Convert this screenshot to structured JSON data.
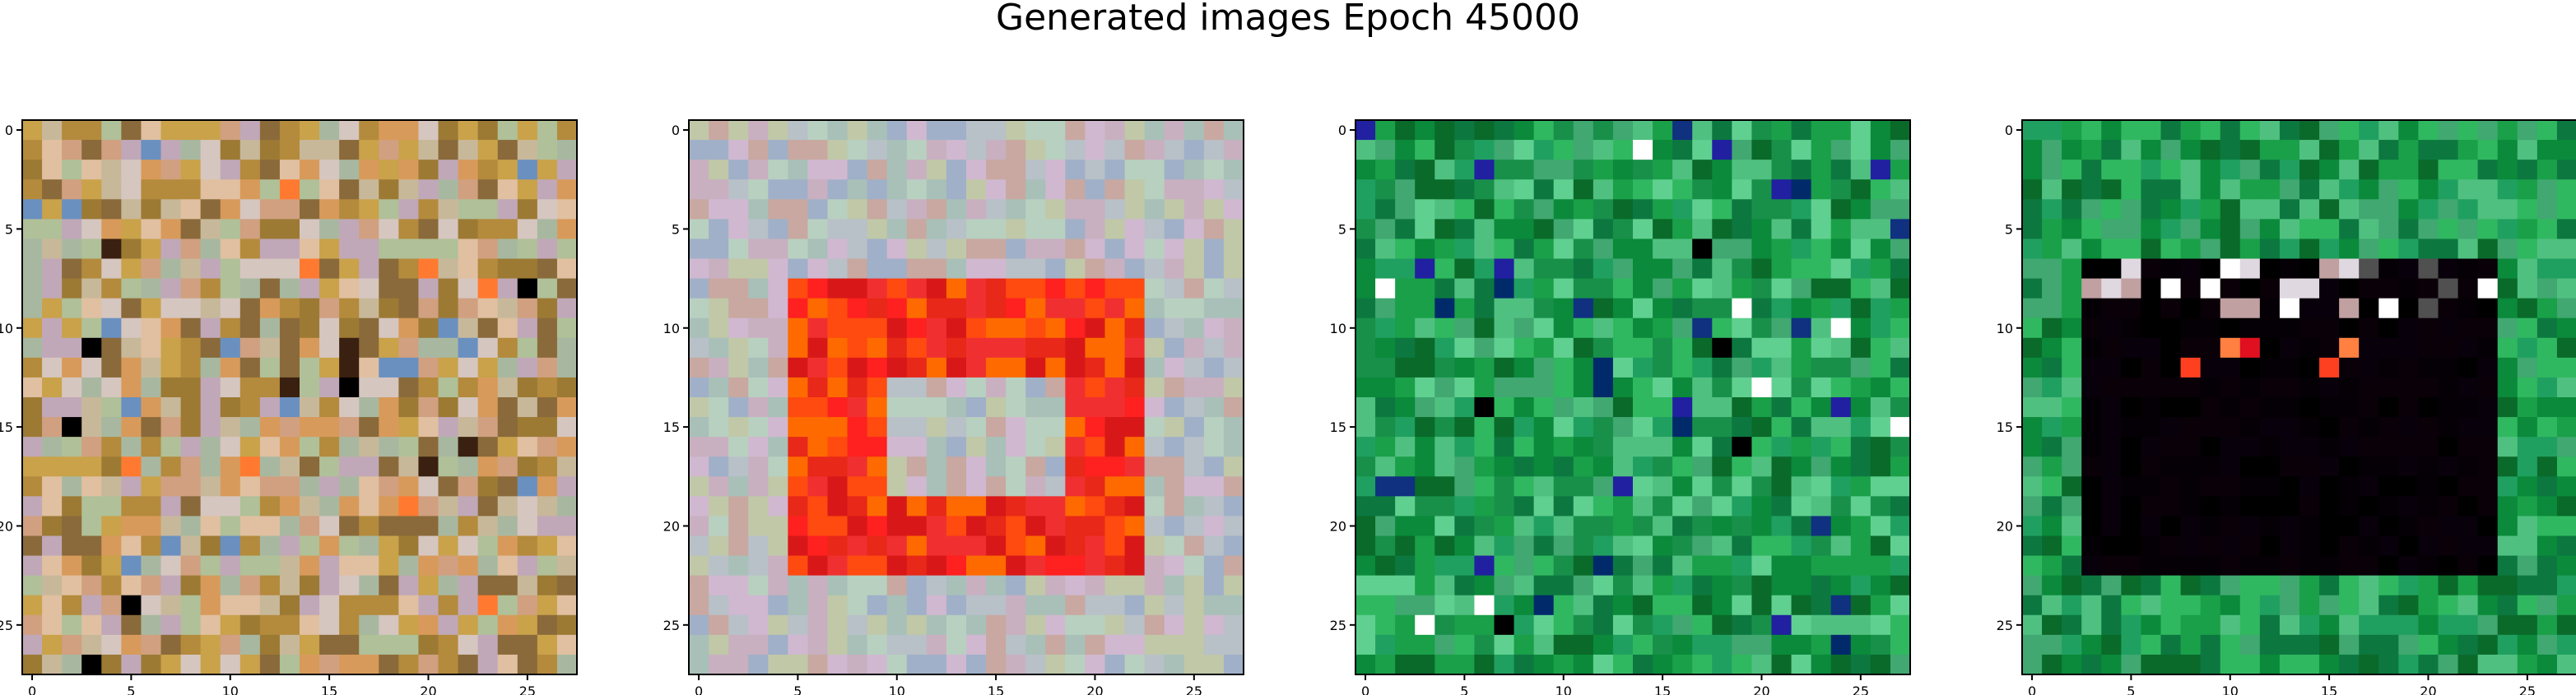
{
  "title": "Generated images Epoch 45000",
  "chart_data": [
    {
      "type": "heatmap",
      "description_pattern": "noise",
      "palette": [
        "#b48a3c",
        "#c9a24a",
        "#d89a5a",
        "#9c7a34",
        "#c8b89a",
        "#d6c6c0",
        "#a8b8a0",
        "#c0a8b8",
        "#d0a080",
        "#8a6a3a",
        "#e0c0a0",
        "#b0c098"
      ],
      "grid": [
        28,
        28
      ],
      "xlim": [
        0,
        27
      ],
      "ylim": [
        27,
        0
      ],
      "xticks": [
        0,
        5,
        10,
        15,
        20,
        25
      ],
      "yticks": [
        0,
        5,
        10,
        15,
        20,
        25
      ]
    },
    {
      "type": "heatmap",
      "description_pattern": "red-square",
      "palette": [
        "#b8c0c8",
        "#c8b0c0",
        "#a8c0b8",
        "#c0c8a8",
        "#d0b8d0",
        "#a0b0c8",
        "#b8d0c0",
        "#c8a8a0"
      ],
      "accent": [
        "#ff2020",
        "#e82818",
        "#ff4a10",
        "#f03030",
        "#ff6a00",
        "#d81818"
      ],
      "grid": [
        28,
        28
      ],
      "xlim": [
        0,
        27
      ],
      "ylim": [
        27,
        0
      ],
      "xticks": [
        0,
        5,
        10,
        15,
        20,
        25
      ],
      "yticks": [
        0,
        5,
        10,
        15,
        20,
        25
      ]
    },
    {
      "type": "heatmap",
      "description_pattern": "green-noise",
      "palette": [
        "#0a8a3a",
        "#1aa048",
        "#30b860",
        "#0a6a2a",
        "#50c080",
        "#20a060",
        "#0c7840",
        "#40a870",
        "#18904a",
        "#60d090"
      ],
      "grid": [
        28,
        28
      ],
      "xlim": [
        0,
        27
      ],
      "ylim": [
        27,
        0
      ],
      "xticks": [
        0,
        5,
        10,
        15,
        20,
        25
      ],
      "yticks": [
        0,
        5,
        10,
        15,
        20,
        25
      ]
    },
    {
      "type": "heatmap",
      "description_pattern": "green-frame-black-center",
      "palette": [
        "#0a8a3a",
        "#1aa048",
        "#30b860",
        "#0a6a2a",
        "#50c080",
        "#20a060",
        "#0c7840",
        "#40a870"
      ],
      "accent": [
        "#050005",
        "#0a0008",
        "#000000",
        "#08000a"
      ],
      "grid": [
        28,
        28
      ],
      "xlim": [
        0,
        27
      ],
      "ylim": [
        27,
        0
      ],
      "xticks": [
        0,
        5,
        10,
        15,
        20,
        25
      ],
      "yticks": [
        0,
        5,
        10,
        15,
        20,
        25
      ]
    }
  ]
}
